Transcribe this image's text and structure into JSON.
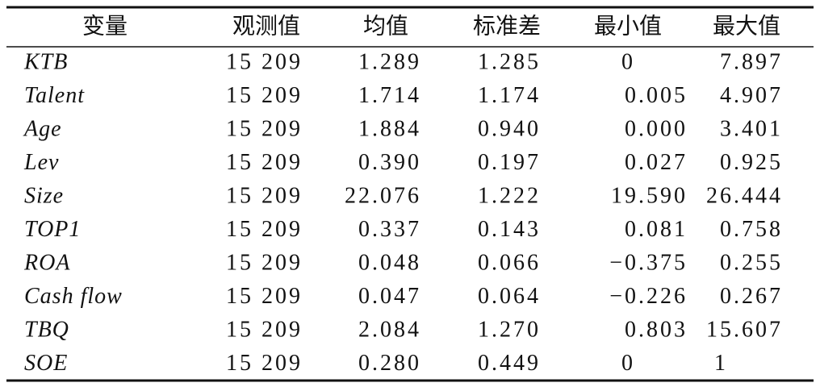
{
  "table": {
    "header": [
      "变量",
      "观测值",
      "均值",
      "标准差",
      "最小值",
      "最大值"
    ],
    "rows": [
      [
        "KTB",
        "15 209",
        "1.289",
        "1.285",
        "0",
        "7.897"
      ],
      [
        "Talent",
        "15 209",
        "1.714",
        "1.174",
        "0.005",
        "4.907"
      ],
      [
        "Age",
        "15 209",
        "1.884",
        "0.940",
        "0.000",
        "3.401"
      ],
      [
        "Lev",
        "15 209",
        "0.390",
        "0.197",
        "0.027",
        "0.925"
      ],
      [
        "Size",
        "15 209",
        "22.076",
        "1.222",
        "19.590",
        "26.444"
      ],
      [
        "TOP1",
        "15 209",
        "0.337",
        "0.143",
        "0.081",
        "0.758"
      ],
      [
        "ROA",
        "15 209",
        "0.048",
        "0.066",
        "−0.375",
        "0.255"
      ],
      [
        "Cash flow",
        "15 209",
        "0.047",
        "0.064",
        "−0.226",
        "0.267"
      ],
      [
        "TBQ",
        "15 209",
        "2.084",
        "1.270",
        "0.803",
        "15.607"
      ],
      [
        "SOE",
        "15 209",
        "0.280",
        "0.449",
        "0",
        "1"
      ]
    ]
  }
}
